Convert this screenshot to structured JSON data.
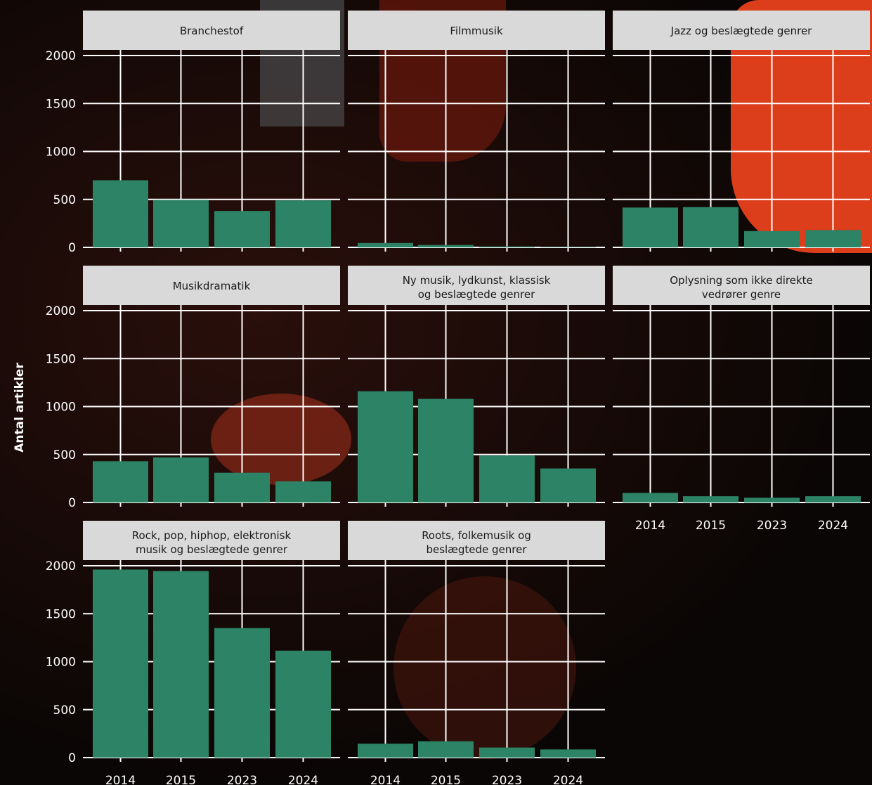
{
  "chart_data": {
    "type": "bar",
    "title": "",
    "ylabel": "Antal artikler",
    "xlabel": "",
    "categories": [
      "2014",
      "2015",
      "2023",
      "2024"
    ],
    "ylim": [
      0,
      2000
    ],
    "yticks": [
      0,
      500,
      1000,
      1500,
      2000
    ],
    "grid": true,
    "bar_color": "#2c8366",
    "strip_color": "#d9d9d9",
    "panels": [
      {
        "title": "Branchestof",
        "values": [
          700,
          495,
          380,
          490
        ]
      },
      {
        "title": "Filmmusik",
        "values": [
          45,
          25,
          10,
          5
        ]
      },
      {
        "title": "Jazz og beslægtede genrer",
        "values": [
          415,
          420,
          170,
          180
        ]
      },
      {
        "title": "Musikdramatik",
        "values": [
          430,
          470,
          310,
          220
        ]
      },
      {
        "title": "Ny musik, lydkunst, klassisk\nog beslægtede genrer",
        "values": [
          1160,
          1080,
          490,
          355
        ]
      },
      {
        "title": "Oplysning som ikke direkte\nvedrører genre",
        "values": [
          100,
          65,
          50,
          65
        ]
      },
      {
        "title": "Rock, pop, hiphop, elektronisk\nmusik og beslægtede genrer",
        "values": [
          1960,
          1945,
          1350,
          1115
        ]
      },
      {
        "title": "Roots, folkemusik og\nbeslægtede genrer",
        "values": [
          145,
          170,
          105,
          85
        ]
      }
    ]
  }
}
